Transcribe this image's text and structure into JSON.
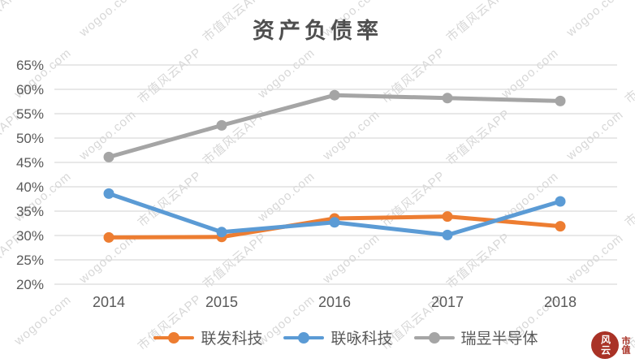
{
  "chart_data": {
    "type": "line",
    "title": "资产负债率",
    "x": [
      "2014",
      "2015",
      "2016",
      "2017",
      "2018"
    ],
    "series": [
      {
        "name": "联发科技",
        "color": "#ED7D31",
        "values": [
          29.6,
          29.7,
          33.5,
          33.9,
          31.9
        ]
      },
      {
        "name": "联咏科技",
        "color": "#5B9BD5",
        "values": [
          38.6,
          30.7,
          32.7,
          30.1,
          37.0
        ]
      },
      {
        "name": "瑞昱半导体",
        "color": "#A5A5A5",
        "values": [
          46.1,
          52.6,
          58.8,
          58.2,
          57.6
        ]
      }
    ],
    "xlabel": "",
    "ylabel": "",
    "ylim": [
      20,
      65
    ],
    "ytick_step": 5,
    "ytick_labels": [
      "65%",
      "60%",
      "55%",
      "50%",
      "45%",
      "40%",
      "35%",
      "30%",
      "25%",
      "20%"
    ],
    "grid": true,
    "legend_position": "bottom",
    "gridline_color": "#d9d9d9",
    "text_color": "#595959"
  },
  "watermark": {
    "texts": [
      "市值风云APP",
      "wogoo.com"
    ]
  },
  "logo": {
    "seal_text": "风云",
    "label": "市值"
  }
}
